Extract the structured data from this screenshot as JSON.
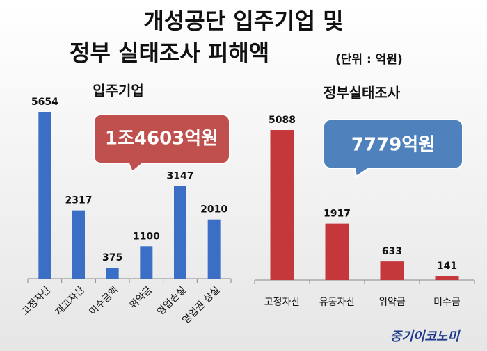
{
  "title": [
    "개성공단 입주기업 및",
    "정부 실태조사 피해액"
  ],
  "unit": "(단위 : 억원)",
  "source": "중기이코노미",
  "chart_data": [
    {
      "type": "bar",
      "title": "입주기업",
      "annotation": "1조4603억원",
      "color": "#3b6fc6",
      "categories": [
        "고정자산",
        "재고자산",
        "미수금액",
        "위약금",
        "영업손실",
        "영업권 상실"
      ],
      "values": [
        5654,
        2317,
        375,
        1100,
        3147,
        2010
      ]
    },
    {
      "type": "bar",
      "title": "정부실태조사",
      "annotation": "7779억원",
      "color": "#c4373a",
      "categories": [
        "고정자산",
        "유동자산",
        "위약금",
        "미수금"
      ],
      "values": [
        5088,
        1917,
        633,
        141
      ]
    }
  ]
}
